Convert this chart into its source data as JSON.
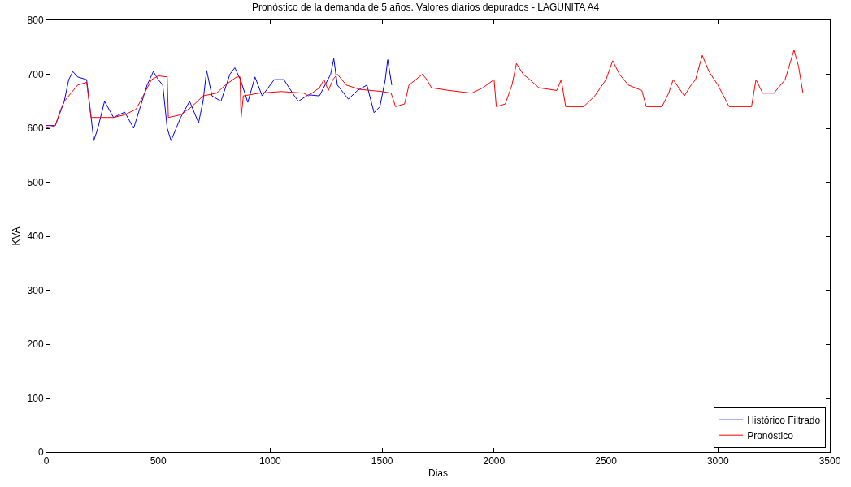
{
  "chart_data": {
    "type": "line",
    "title": "Pronóstico de la demanda de 5 años. Valores diarios depurados - LAGUNITA A4",
    "xlabel": "Dias",
    "ylabel": "KVA",
    "xlim": [
      0,
      3500
    ],
    "xticks": [
      0,
      500,
      1000,
      1500,
      2000,
      2500,
      3000,
      3500
    ],
    "ylim": [
      0,
      800
    ],
    "yticks": [
      0,
      100,
      200,
      300,
      400,
      500,
      600,
      700,
      800
    ],
    "legend": "bottom right",
    "marker": "none",
    "line_style": "solid",
    "series": [
      {
        "name": "Histórico Filtrado",
        "color": "#0000ff",
        "x": [
          0,
          40,
          80,
          100,
          118,
          140,
          180,
          200,
          212,
          230,
          260,
          300,
          350,
          390,
          420,
          450,
          478,
          500,
          520,
          540,
          557,
          600,
          640,
          680,
          700,
          716,
          740,
          780,
          820,
          842,
          867,
          900,
          932,
          964,
          1018,
          1061,
          1108,
          1126,
          1170,
          1220,
          1270,
          1284,
          1300,
          1349,
          1390,
          1432,
          1464,
          1490,
          1514,
          1525,
          1543
        ],
        "values": [
          605,
          605,
          650,
          690,
          705,
          695,
          690,
          620,
          577,
          600,
          650,
          620,
          630,
          600,
          640,
          680,
          705,
          690,
          680,
          600,
          577,
          620,
          650,
          610,
          650,
          707,
          660,
          650,
          700,
          712,
          690,
          648,
          695,
          660,
          690,
          690,
          660,
          650,
          662,
          660,
          700,
          729,
          680,
          654,
          670,
          680,
          629,
          640,
          690,
          727,
          680
        ]
      },
      {
        "name": "Pronóstico",
        "color": "#ff0000",
        "x": [
          0,
          40,
          60,
          80,
          110,
          140,
          180,
          200,
          300,
          350,
          400,
          420,
          470,
          500,
          540,
          545,
          600,
          650,
          700,
          760,
          800,
          850,
          865,
          870,
          880,
          950,
          1050,
          1150,
          1170,
          1220,
          1240,
          1260,
          1280,
          1300,
          1320,
          1340,
          1400,
          1500,
          1540,
          1560,
          1600,
          1620,
          1680,
          1700,
          1720,
          1800,
          1900,
          1950,
          2000,
          2010,
          2050,
          2080,
          2100,
          2130,
          2160,
          2200,
          2280,
          2300,
          2320,
          2400,
          2450,
          2500,
          2530,
          2560,
          2600,
          2660,
          2680,
          2750,
          2780,
          2800,
          2850,
          2880,
          2900,
          2930,
          2960,
          3000,
          3050,
          3150,
          3170,
          3200,
          3250,
          3300,
          3340,
          3360,
          3380
        ],
        "values": [
          600,
          605,
          630,
          650,
          665,
          680,
          685,
          620,
          620,
          625,
          635,
          650,
          690,
          697,
          695,
          620,
          625,
          640,
          660,
          665,
          680,
          695,
          695,
          620,
          660,
          665,
          668,
          665,
          660,
          675,
          690,
          670,
          690,
          700,
          690,
          680,
          672,
          668,
          665,
          640,
          645,
          680,
          700,
          690,
          675,
          670,
          665,
          675,
          690,
          640,
          645,
          680,
          720,
          700,
          690,
          675,
          670,
          690,
          640,
          640,
          660,
          690,
          725,
          700,
          680,
          670,
          640,
          640,
          665,
          690,
          660,
          680,
          690,
          735,
          705,
          680,
          640,
          640,
          690,
          665,
          665,
          690,
          745,
          715,
          665
        ]
      }
    ]
  }
}
